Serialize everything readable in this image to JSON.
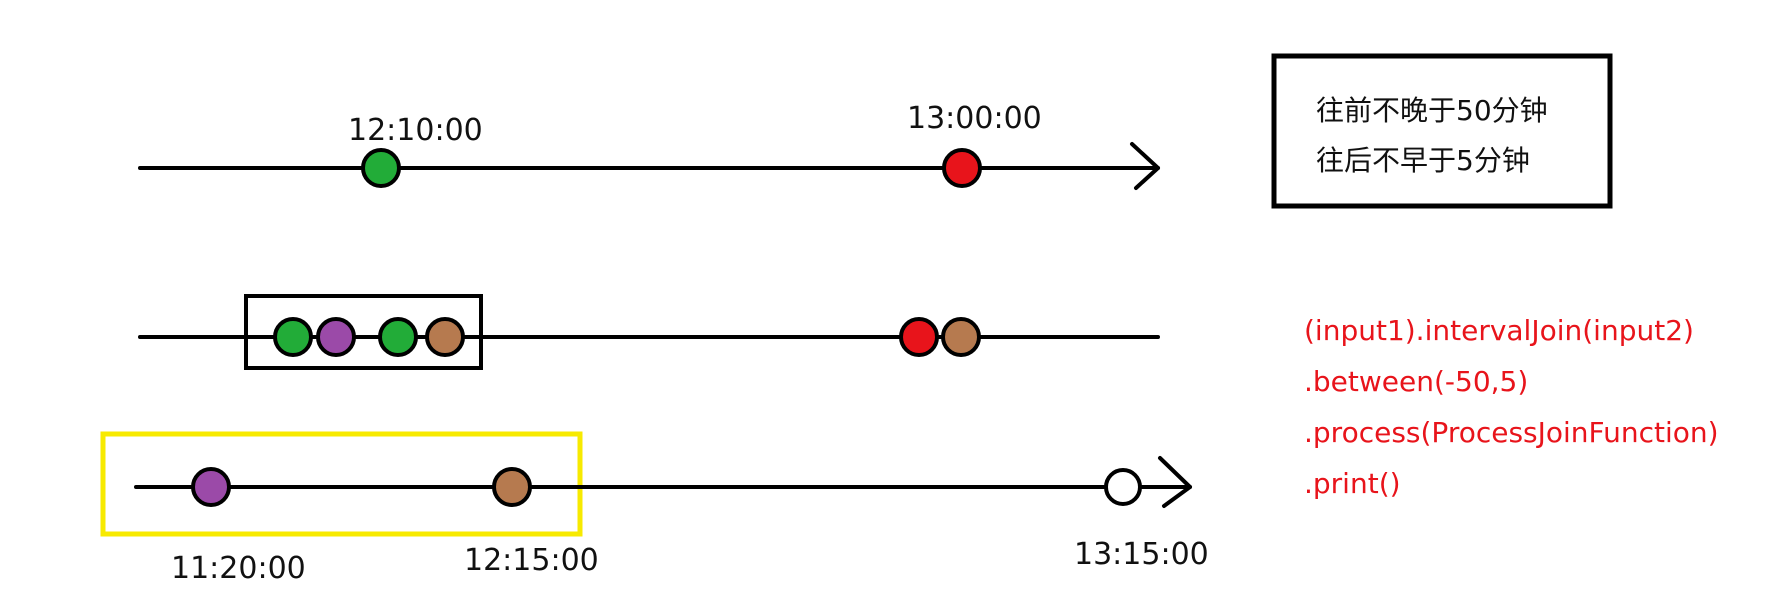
{
  "colors": {
    "line": "#000000",
    "green": "#22ac38",
    "purple": "#9b4aa8",
    "brown": "#b67a4f",
    "red": "#e8141b",
    "highlight": "#f7ea00",
    "code": "#e8141b"
  },
  "timeline1": {
    "labels": [
      "12:10:00",
      "13:00:00"
    ]
  },
  "timeline3": {
    "labels": [
      "11:20:00",
      "12:15:00",
      "13:15:00"
    ]
  },
  "legend": {
    "lines": [
      "往前不晚于50分钟",
      "往后不早于5分钟"
    ]
  },
  "code": {
    "lines": [
      "(input1).intervalJoin(input2)",
      ".between(-50,5)",
      ".process(ProcessJoinFunction)",
      ".print()"
    ]
  }
}
